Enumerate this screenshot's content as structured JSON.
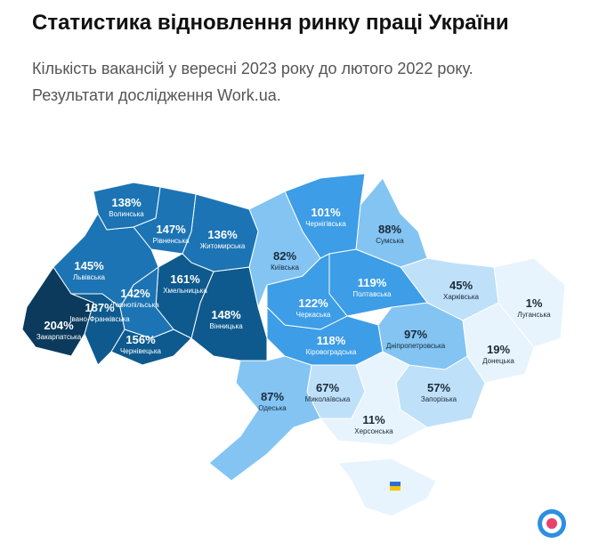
{
  "header": {
    "title": "Статистика відновлення ринку праці України",
    "subtitle_lines": [
      "Кількість вакансій у вересні 2023 року до лютого 2022 року.",
      "Результати дослідження Work.ua."
    ]
  },
  "regions": [
    {
      "name": "Волинська",
      "value": 138,
      "value_label": "138%"
    },
    {
      "name": "Рівненська",
      "value": 147,
      "value_label": "147%"
    },
    {
      "name": "Житомирська",
      "value": 136,
      "value_label": "136%"
    },
    {
      "name": "Львівська",
      "value": 145,
      "value_label": "145%"
    },
    {
      "name": "Тернопільська",
      "value": 142,
      "value_label": "142%"
    },
    {
      "name": "Хмельницька",
      "value": 161,
      "value_label": "161%"
    },
    {
      "name": "Вінницька",
      "value": 148,
      "value_label": "148%"
    },
    {
      "name": "Закарпатська",
      "value": 204,
      "value_label": "204%"
    },
    {
      "name": "Івано-Франківська",
      "value": 187,
      "value_label": "187%"
    },
    {
      "name": "Чернівецька",
      "value": 156,
      "value_label": "156%"
    },
    {
      "name": "Київська",
      "value": 82,
      "value_label": "82%"
    },
    {
      "name": "Чернігівська",
      "value": 101,
      "value_label": "101%"
    },
    {
      "name": "Сумська",
      "value": 88,
      "value_label": "88%"
    },
    {
      "name": "Черкаська",
      "value": 122,
      "value_label": "122%"
    },
    {
      "name": "Полтавська",
      "value": 119,
      "value_label": "119%"
    },
    {
      "name": "Харківська",
      "value": 45,
      "value_label": "45%"
    },
    {
      "name": "Луганська",
      "value": 1,
      "value_label": "1%"
    },
    {
      "name": "Донецька",
      "value": 19,
      "value_label": "19%"
    },
    {
      "name": "Дніпропетровська",
      "value": 97,
      "value_label": "97%"
    },
    {
      "name": "Кіровоградська",
      "value": 118,
      "value_label": "118%"
    },
    {
      "name": "Одеська",
      "value": 87,
      "value_label": "87%"
    },
    {
      "name": "Миколаївська",
      "value": 67,
      "value_label": "67%"
    },
    {
      "name": "Запорізька",
      "value": 57,
      "value_label": "57%"
    },
    {
      "name": "Херсонська",
      "value": 11,
      "value_label": "11%"
    }
  ]
}
